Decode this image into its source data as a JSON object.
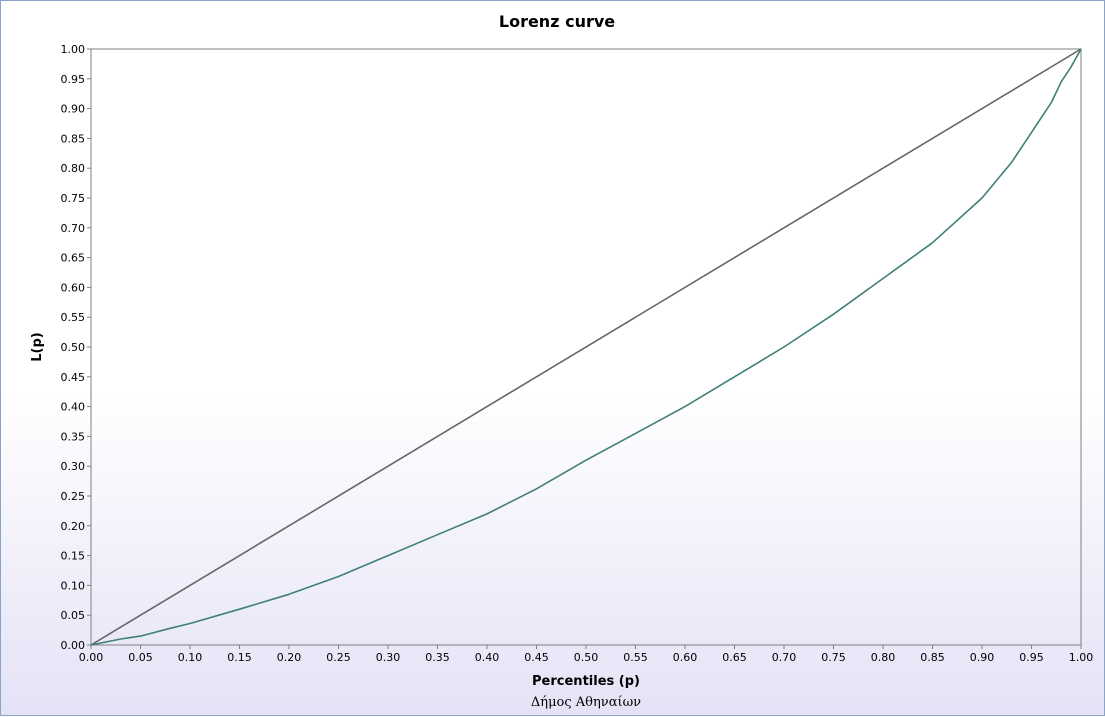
{
  "chart_data": {
    "type": "line",
    "title": "Lorenz curve",
    "xlabel": "Percentiles (p)",
    "ylabel": "L(p)",
    "caption": "Δήμος Αθηναίων",
    "xlim": [
      0,
      1
    ],
    "ylim": [
      0,
      1
    ],
    "x_ticks": [
      "0.00",
      "0.05",
      "0.10",
      "0.15",
      "0.20",
      "0.25",
      "0.30",
      "0.35",
      "0.40",
      "0.45",
      "0.50",
      "0.55",
      "0.60",
      "0.65",
      "0.70",
      "0.75",
      "0.80",
      "0.85",
      "0.90",
      "0.95",
      "1.00"
    ],
    "y_ticks": [
      "0.00",
      "0.05",
      "0.10",
      "0.15",
      "0.20",
      "0.25",
      "0.30",
      "0.35",
      "0.40",
      "0.45",
      "0.50",
      "0.55",
      "0.60",
      "0.65",
      "0.70",
      "0.75",
      "0.80",
      "0.85",
      "0.90",
      "0.95",
      "1.00"
    ],
    "grid": false,
    "series": [
      {
        "role": "equality-line",
        "color": "#666666",
        "x": [
          0,
          1
        ],
        "y": [
          0,
          1
        ]
      },
      {
        "role": "lorenz-curve",
        "color": "#3f7f7a",
        "x": [
          0,
          0.03,
          0.05,
          0.08,
          0.1,
          0.15,
          0.2,
          0.25,
          0.3,
          0.35,
          0.4,
          0.45,
          0.5,
          0.55,
          0.6,
          0.65,
          0.7,
          0.75,
          0.8,
          0.85,
          0.9,
          0.93,
          0.95,
          0.97,
          0.98,
          0.99,
          1.0
        ],
        "y": [
          0,
          0.01,
          0.015,
          0.028,
          0.036,
          0.06,
          0.085,
          0.115,
          0.15,
          0.185,
          0.22,
          0.262,
          0.31,
          0.355,
          0.4,
          0.45,
          0.5,
          0.555,
          0.615,
          0.675,
          0.75,
          0.81,
          0.86,
          0.91,
          0.945,
          0.97,
          1.0
        ]
      }
    ]
  }
}
